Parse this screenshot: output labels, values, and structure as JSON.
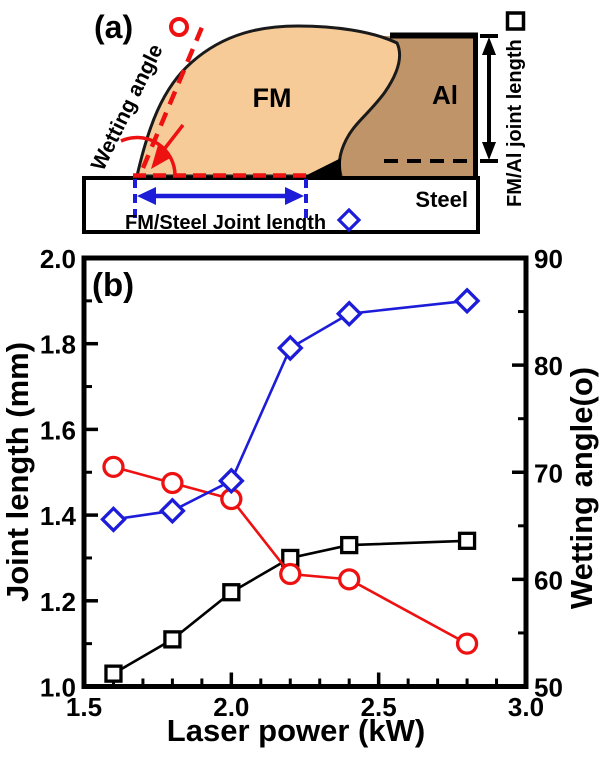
{
  "figure": {
    "panel_a": {
      "label": "(a)",
      "fm_label": "FM",
      "al_label": "Al",
      "steel_label": "Steel",
      "wetting_angle_label": "Wetting angle",
      "fm_steel_joint_label": "FM/Steel Joint length",
      "fm_al_joint_label": "FM/Al joint length",
      "colors": {
        "fm_fill": "#f7cb97",
        "al_fill": "#bf9468",
        "red": "#ee1111",
        "blue": "#1c1cd9"
      }
    },
    "panel_b": {
      "label": "(b)"
    }
  },
  "chart_data": {
    "type": "line",
    "x": [
      1.6,
      1.8,
      2.0,
      2.2,
      2.4,
      2.8
    ],
    "xlabel": "Laser power (kW)",
    "xlim": [
      1.5,
      3.0
    ],
    "x_ticks": [
      1.5,
      2.0,
      2.5,
      3.0
    ],
    "x_minor_step": 0.1,
    "left_axis": {
      "label": "Joint length (mm)",
      "lim": [
        1.0,
        2.0
      ],
      "ticks": [
        1.0,
        1.2,
        1.4,
        1.6,
        1.8,
        2.0
      ],
      "minor_step": 0.1
    },
    "right_axis": {
      "label": "Wetting angle(o)",
      "lim": [
        50,
        90
      ],
      "ticks": [
        50,
        60,
        70,
        80,
        90
      ],
      "minor_step": 5
    },
    "grid": false,
    "legend": "none (series identified by markers in panel a)",
    "series": [
      {
        "name": "FM/Al joint length",
        "axis": "left",
        "marker": "square",
        "color": "#000000",
        "values": [
          1.03,
          1.11,
          1.22,
          1.3,
          1.33,
          1.34
        ]
      },
      {
        "name": "Wetting angle",
        "axis": "right",
        "marker": "circle",
        "color": "#ee1111",
        "values": [
          70.5,
          69,
          67.5,
          60.5,
          60,
          54
        ]
      },
      {
        "name": "FM/Steel joint length",
        "axis": "left",
        "marker": "diamond",
        "color": "#1c1cd9",
        "values": [
          1.39,
          1.41,
          1.48,
          1.79,
          1.87,
          1.9
        ]
      }
    ]
  }
}
